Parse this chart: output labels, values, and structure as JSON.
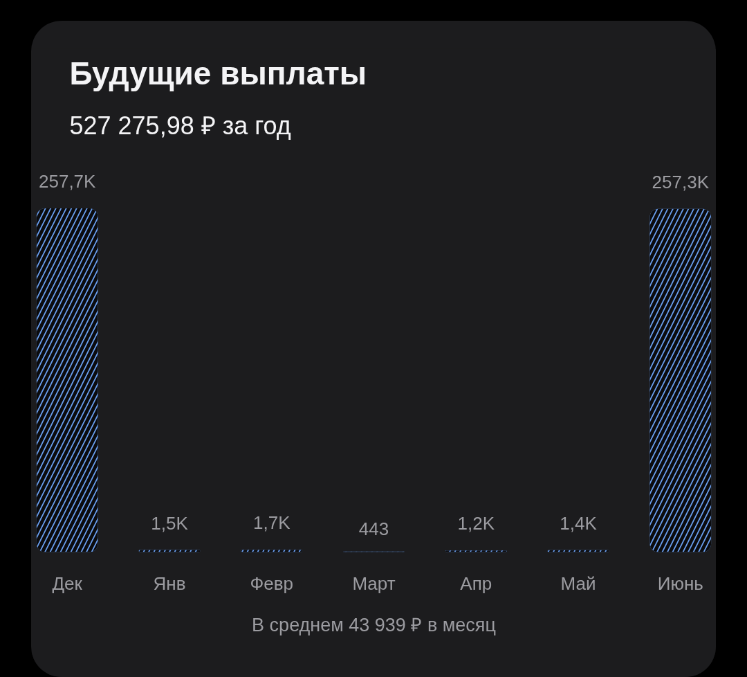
{
  "chart_data": {
    "type": "bar",
    "title": "Будущие выплаты",
    "subtitle": "527 275,98 ₽ за год",
    "annotations": [
      "В среднем 43 939 ₽ в месяц"
    ],
    "categories": [
      "Дек",
      "Янв",
      "Февр",
      "Март",
      "Апр",
      "Май",
      "Июнь"
    ],
    "values": [
      257700,
      1500,
      1700,
      443,
      1200,
      1400,
      257300
    ],
    "value_labels": [
      "257,7K",
      "1,5K",
      "1,7K",
      "443",
      "1,2K",
      "1,4K",
      "257,3K"
    ],
    "color": "#6a9ff0",
    "tick_labels": "x"
  }
}
